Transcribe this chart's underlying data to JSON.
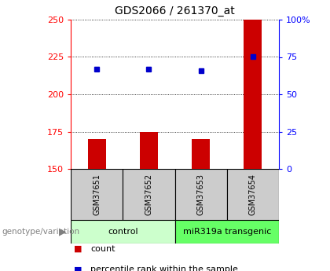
{
  "title": "GDS2066 / 261370_at",
  "samples": [
    "GSM37651",
    "GSM37652",
    "GSM37653",
    "GSM37654"
  ],
  "count_values": [
    170,
    175,
    170,
    250
  ],
  "percentile_values": [
    217,
    217,
    216,
    225
  ],
  "ylim_left": [
    150,
    250
  ],
  "ylim_right": [
    0,
    100
  ],
  "yticks_left": [
    150,
    175,
    200,
    225,
    250
  ],
  "yticks_right": [
    0,
    25,
    50,
    75,
    100
  ],
  "ytick_labels_right": [
    "0",
    "25",
    "50",
    "75",
    "100%"
  ],
  "groups": [
    {
      "label": "control",
      "samples": [
        0,
        1
      ],
      "color": "#ccffcc"
    },
    {
      "label": "miR319a transgenic",
      "samples": [
        2,
        3
      ],
      "color": "#66ff66"
    }
  ],
  "bar_color": "#cc0000",
  "dot_color": "#0000cc",
  "bar_width": 0.35,
  "grid_color": "#000000",
  "bg_color": "#ffffff",
  "plot_bg": "#ffffff",
  "sample_box_color": "#cccccc",
  "genotype_label": "genotype/variation",
  "legend_count": "count",
  "legend_percentile": "percentile rank within the sample"
}
